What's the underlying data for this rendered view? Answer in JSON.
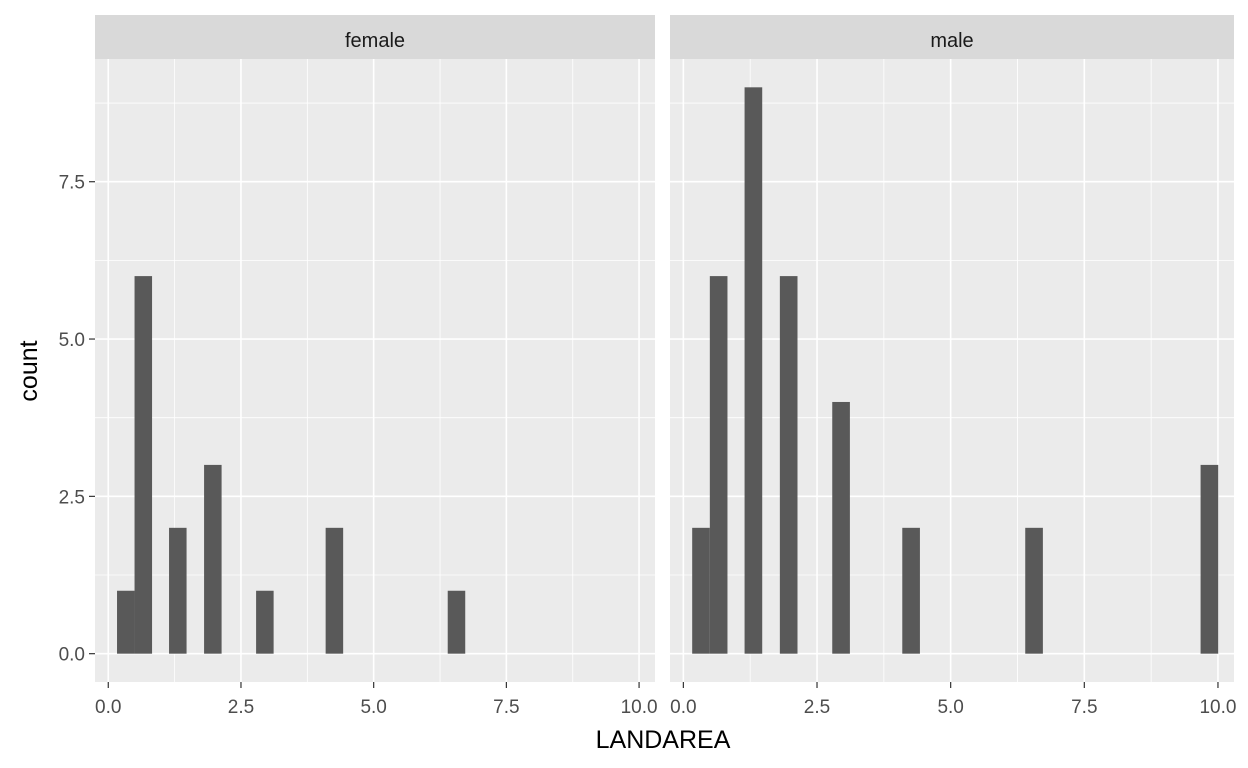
{
  "chart_data": {
    "type": "bar",
    "xlabel": "LANDAREA",
    "ylabel": "count",
    "xlim": [
      -0.25,
      10.3
    ],
    "ylim": [
      -0.45,
      9.45
    ],
    "x_ticks": [
      "0.0",
      "2.5",
      "5.0",
      "7.5",
      "10.0"
    ],
    "y_ticks": [
      "0.0",
      "2.5",
      "5.0",
      "7.5"
    ],
    "grid": true,
    "bar_color": "#595959",
    "panel_background": "#ebebeb",
    "strip_background": "#d9d9d9",
    "grid_color": "#ffffff",
    "bin_width": 0.33,
    "panels": [
      {
        "strip_label": "female",
        "bins": [
          {
            "x": 0.33,
            "count": 1
          },
          {
            "x": 0.66,
            "count": 6
          },
          {
            "x": 1.31,
            "count": 2
          },
          {
            "x": 1.97,
            "count": 3
          },
          {
            "x": 2.95,
            "count": 1
          },
          {
            "x": 4.26,
            "count": 2
          },
          {
            "x": 6.56,
            "count": 1
          }
        ]
      },
      {
        "strip_label": "male",
        "bins": [
          {
            "x": 0.33,
            "count": 2
          },
          {
            "x": 0.66,
            "count": 6
          },
          {
            "x": 1.31,
            "count": 9
          },
          {
            "x": 1.97,
            "count": 6
          },
          {
            "x": 2.95,
            "count": 4
          },
          {
            "x": 4.26,
            "count": 2
          },
          {
            "x": 6.56,
            "count": 2
          },
          {
            "x": 9.84,
            "count": 3
          }
        ]
      }
    ]
  }
}
